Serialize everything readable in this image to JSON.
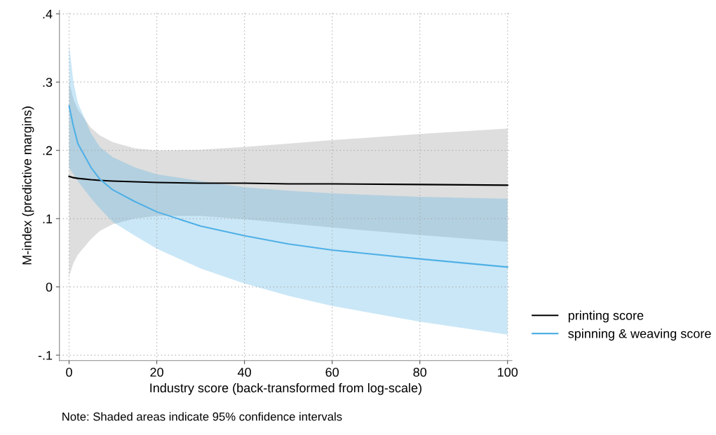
{
  "chart_data": {
    "type": "line",
    "xlabel": "Industry score (back-transformed from log-scale)",
    "ylabel": "M-index (predictive margins)",
    "x": [
      0,
      1,
      2,
      5,
      7,
      10,
      15,
      20,
      30,
      40,
      50,
      60,
      80,
      100
    ],
    "series": [
      {
        "name": "printing score",
        "color": "#000000",
        "values": [
          0.162,
          0.16,
          0.159,
          0.157,
          0.156,
          0.155,
          0.154,
          0.153,
          0.152,
          0.152,
          0.151,
          0.151,
          0.15,
          0.149
        ],
        "lower": [
          0.015,
          0.035,
          0.047,
          0.07,
          0.082,
          0.092,
          0.1,
          0.104,
          0.104,
          0.099,
          0.093,
          0.087,
          0.076,
          0.066
        ],
        "upper": [
          0.3,
          0.275,
          0.26,
          0.233,
          0.222,
          0.212,
          0.203,
          0.2,
          0.201,
          0.205,
          0.21,
          0.215,
          0.224,
          0.232
        ]
      },
      {
        "name": "spinning & weaving score",
        "color": "#4fb0e6",
        "values": [
          0.265,
          0.235,
          0.21,
          0.175,
          0.158,
          0.142,
          0.125,
          0.11,
          0.089,
          0.075,
          0.063,
          0.054,
          0.041,
          0.029
        ],
        "lower": [
          0.175,
          0.165,
          0.155,
          0.13,
          0.115,
          0.095,
          0.075,
          0.056,
          0.027,
          0.005,
          -0.013,
          -0.028,
          -0.051,
          -0.07
        ],
        "upper": [
          0.355,
          0.3,
          0.27,
          0.225,
          0.205,
          0.19,
          0.175,
          0.165,
          0.155,
          0.146,
          0.141,
          0.137,
          0.132,
          0.129
        ]
      }
    ],
    "xlim": [
      -2.2,
      101
    ],
    "ylim": [
      -0.108,
      0.405
    ],
    "xticks": [
      0,
      20,
      40,
      60,
      80,
      100
    ],
    "yticks": [
      {
        "value": -0.1,
        "label": "-.1"
      },
      {
        "value": 0,
        "label": "0"
      },
      {
        "value": 0.1,
        "label": ".1"
      },
      {
        "value": 0.2,
        "label": ".2"
      },
      {
        "value": 0.3,
        "label": ".3"
      },
      {
        "value": 0.4,
        "label": ".4"
      }
    ],
    "grid": true,
    "legend": "right",
    "annotations": [
      "Note: Shaded areas indicate 95% confidence intervals"
    ]
  }
}
